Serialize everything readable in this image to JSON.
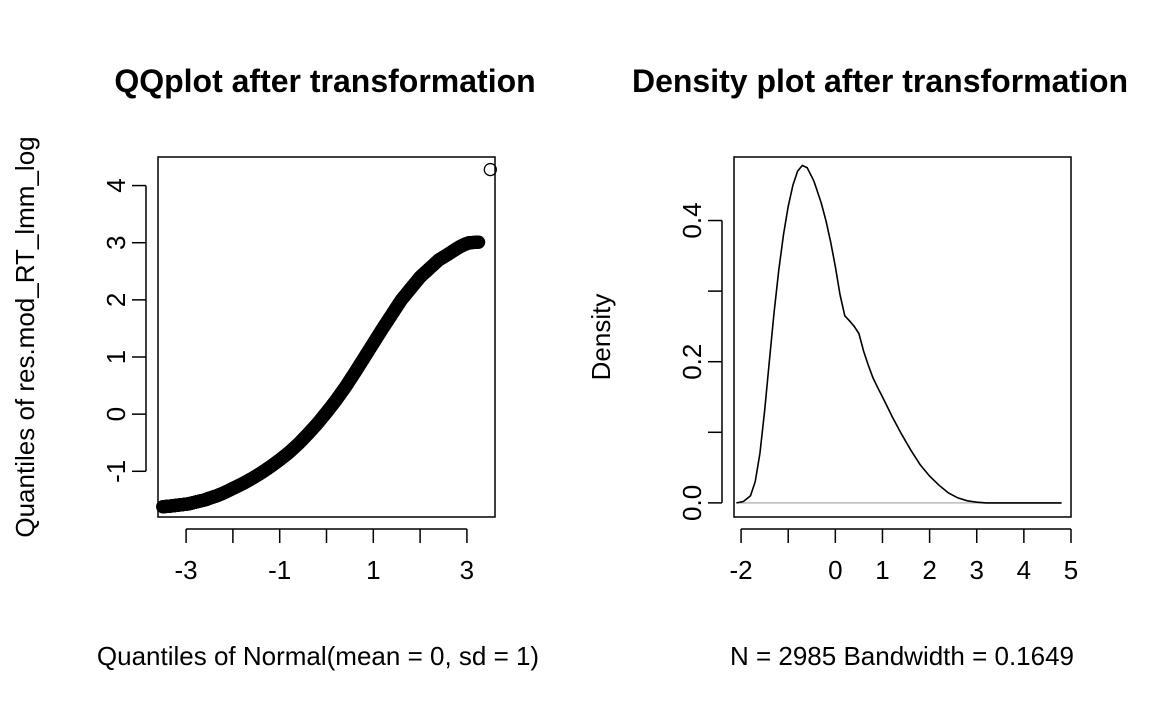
{
  "chart_data": [
    {
      "type": "scatter",
      "title": "QQplot after transformation",
      "xlabel": "Quantiles of Normal(mean = 0, sd = 1)",
      "ylabel": "Quantiles of res.mod_RT_lmm_log",
      "xlim": [
        -3.6,
        3.6
      ],
      "ylim": [
        -1.8,
        4.5
      ],
      "x_ticks": [
        -3,
        -2,
        -1,
        0,
        1,
        2,
        3
      ],
      "x_tick_labels": [
        "-3",
        "",
        "-1",
        "",
        "1",
        "",
        "3"
      ],
      "y_ticks": [
        -1,
        0,
        1,
        2,
        3,
        4
      ],
      "y_tick_labels": [
        "-1",
        "0",
        "1",
        "2",
        "3",
        "4"
      ],
      "marker": "open-circle",
      "points_x": [
        -3.5,
        -3.35,
        -3.25,
        -3.15,
        -3.05,
        -2.95,
        -2.85,
        -2.75,
        -2.6,
        -2.5,
        -2.35,
        -2.2,
        -2.0,
        -1.8,
        -1.6,
        -1.4,
        -1.2,
        -1.0,
        -0.8,
        -0.6,
        -0.4,
        -0.2,
        0.0,
        0.2,
        0.4,
        0.6,
        0.8,
        1.0,
        1.2,
        1.4,
        1.6,
        1.8,
        2.0,
        2.2,
        2.4,
        2.6,
        2.75,
        2.85,
        2.95,
        3.05,
        3.25,
        3.5
      ],
      "points_y": [
        -1.62,
        -1.61,
        -1.6,
        -1.59,
        -1.58,
        -1.57,
        -1.55,
        -1.53,
        -1.5,
        -1.47,
        -1.43,
        -1.38,
        -1.3,
        -1.22,
        -1.13,
        -1.03,
        -0.92,
        -0.8,
        -0.67,
        -0.52,
        -0.35,
        -0.17,
        0.03,
        0.24,
        0.47,
        0.72,
        0.98,
        1.24,
        1.5,
        1.75,
        2.0,
        2.2,
        2.4,
        2.55,
        2.7,
        2.8,
        2.88,
        2.93,
        2.97,
        3.0,
        3.01,
        4.28
      ]
    },
    {
      "type": "line",
      "title": "Density plot after transformation",
      "xlabel": "N = 2985   Bandwidth = 0.1649",
      "ylabel": "Density",
      "xlim": [
        -2.15,
        5.0
      ],
      "ylim": [
        -0.02,
        0.49
      ],
      "x_ticks": [
        -2,
        -1,
        0,
        1,
        2,
        3,
        4,
        5
      ],
      "x_tick_labels": [
        "-2",
        "",
        "0",
        "1",
        "2",
        "3",
        "4",
        "5"
      ],
      "y_ticks": [
        0.0,
        0.1,
        0.2,
        0.3,
        0.4
      ],
      "y_tick_labels": [
        "0.0",
        "",
        "0.2",
        "",
        "0.4"
      ],
      "baseline": 0,
      "x": [
        -2.1,
        -1.95,
        -1.8,
        -1.7,
        -1.6,
        -1.5,
        -1.4,
        -1.3,
        -1.2,
        -1.1,
        -1.0,
        -0.9,
        -0.8,
        -0.7,
        -0.6,
        -0.5,
        -0.45,
        -0.4,
        -0.3,
        -0.2,
        -0.1,
        0.0,
        0.1,
        0.2,
        0.3,
        0.4,
        0.5,
        0.6,
        0.7,
        0.8,
        0.9,
        1.0,
        1.2,
        1.4,
        1.6,
        1.8,
        2.0,
        2.2,
        2.4,
        2.6,
        2.8,
        3.0,
        3.2,
        3.5,
        4.0,
        4.8
      ],
      "y": [
        0.0,
        0.002,
        0.01,
        0.03,
        0.07,
        0.13,
        0.2,
        0.27,
        0.33,
        0.38,
        0.42,
        0.45,
        0.47,
        0.478,
        0.475,
        0.462,
        0.455,
        0.445,
        0.425,
        0.4,
        0.37,
        0.335,
        0.295,
        0.265,
        0.258,
        0.25,
        0.24,
        0.215,
        0.195,
        0.177,
        0.163,
        0.15,
        0.123,
        0.098,
        0.075,
        0.054,
        0.038,
        0.025,
        0.014,
        0.007,
        0.003,
        0.001,
        0.0,
        0.0,
        0.0,
        0.0
      ]
    }
  ]
}
